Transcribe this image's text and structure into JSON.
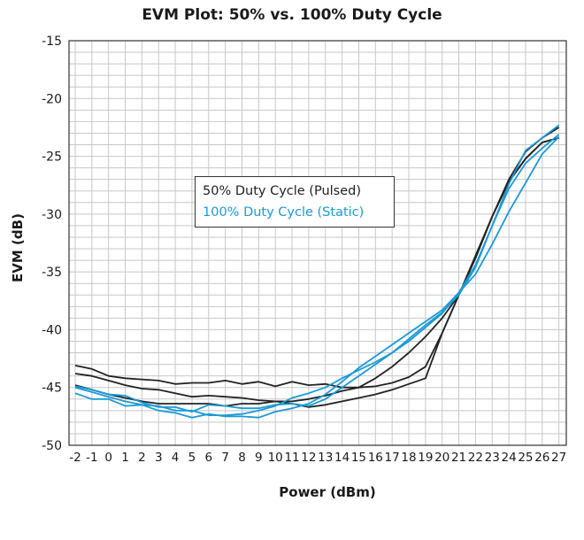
{
  "chart_data": {
    "type": "line",
    "title": "EVM Plot: 50% vs. 100% Duty Cycle",
    "xlabel": "Power (dBm)",
    "ylabel": "EVM  (dB)",
    "x": [
      -2,
      -1,
      0,
      1,
      2,
      3,
      4,
      5,
      6,
      7,
      8,
      9,
      10,
      11,
      12,
      13,
      14,
      15,
      16,
      17,
      18,
      19,
      20,
      21,
      22,
      23,
      24,
      25,
      26,
      27
    ],
    "x_tick_labels": [
      "-2",
      "-1",
      "0",
      "1",
      "2",
      "3",
      "4",
      "5",
      "6",
      "7",
      "8",
      "9",
      "10",
      "11",
      "12",
      "13",
      "14",
      "15",
      "16",
      "17",
      "18",
      "19",
      "20",
      "21",
      "22",
      "23",
      "24",
      "25",
      "26",
      "27"
    ],
    "y_ticks": [
      -15,
      -20,
      -25,
      -30,
      -35,
      -40,
      -45,
      -50
    ],
    "y_tick_labels": [
      "-15",
      "-20",
      "-25",
      "-30",
      "-35",
      "-40",
      "-45",
      "-50"
    ],
    "xlim": [
      -2,
      27
    ],
    "ylim": [
      -50,
      -15
    ],
    "grid": true,
    "legend_position": "center-left",
    "series": [
      {
        "name": "50% Duty Cycle (Pulsed)",
        "color": "#222222",
        "y": [
          -43.1,
          -43.4,
          -44.0,
          -44.2,
          -44.3,
          -44.4,
          -44.7,
          -44.6,
          -44.6,
          -44.4,
          -44.7,
          -44.5,
          -44.9,
          -44.5,
          -44.8,
          -44.7,
          -45.0,
          -45.0,
          -44.9,
          -44.6,
          -44.1,
          -43.2,
          -40.3,
          -37.0,
          -33.8,
          -30.2,
          -27.2,
          -25.2,
          -23.8,
          -23.4
        ]
      },
      {
        "name": "50% Duty Cycle (Pulsed)",
        "color": "#222222",
        "y": [
          -44.8,
          -45.2,
          -45.6,
          -45.9,
          -46.2,
          -46.4,
          -46.4,
          -46.4,
          -46.4,
          -46.6,
          -46.4,
          -46.4,
          -46.2,
          -46.2,
          -46.0,
          -45.7,
          -45.3,
          -45.0,
          -44.2,
          -43.2,
          -42.0,
          -40.6,
          -39.0,
          -37.0,
          -33.8,
          -30.2,
          -27.0,
          -24.6,
          -23.4,
          -22.5
        ]
      },
      {
        "name": "50% Duty Cycle (Pulsed)",
        "color": "#222222",
        "y": [
          -43.8,
          -44.0,
          -44.4,
          -44.8,
          -45.1,
          -45.2,
          -45.5,
          -45.8,
          -45.7,
          -45.8,
          -45.9,
          -46.1,
          -46.2,
          -46.4,
          -46.7,
          -46.5,
          -46.2,
          -45.9,
          -45.6,
          -45.2,
          -44.7,
          -44.2,
          -40.3,
          -37.0,
          -33.6,
          -30.2,
          -27.2,
          -25.2,
          -23.8,
          -23.4
        ]
      },
      {
        "name": "100% Duty Cycle (Static)",
        "color": "#1a9ad6",
        "y": [
          -44.9,
          -45.2,
          -45.6,
          -45.7,
          -46.3,
          -46.7,
          -46.7,
          -47.1,
          -46.5,
          -46.6,
          -46.8,
          -46.8,
          -46.5,
          -46.4,
          -46.6,
          -46.0,
          -45.0,
          -44.0,
          -43.0,
          -42.0,
          -41.0,
          -39.8,
          -38.6,
          -36.8,
          -34.4,
          -31.0,
          -27.4,
          -24.5,
          -23.4,
          -22.3
        ]
      },
      {
        "name": "100% Duty Cycle (Static)",
        "color": "#1a9ad6",
        "y": [
          -45.5,
          -46.0,
          -46.0,
          -46.6,
          -46.5,
          -47.0,
          -47.2,
          -47.6,
          -47.3,
          -47.5,
          -47.5,
          -47.6,
          -47.1,
          -46.8,
          -46.4,
          -45.6,
          -44.5,
          -43.3,
          -42.3,
          -41.3,
          -40.3,
          -39.3,
          -38.3,
          -36.8,
          -35.2,
          -32.6,
          -29.8,
          -27.3,
          -24.8,
          -23.3
        ]
      },
      {
        "name": "100% Duty Cycle (Static)",
        "color": "#1a9ad6",
        "y": [
          -45.0,
          -45.4,
          -45.8,
          -46.2,
          -46.5,
          -46.6,
          -47.0,
          -47.0,
          -47.4,
          -47.4,
          -47.3,
          -47.0,
          -46.6,
          -45.9,
          -45.5,
          -45.0,
          -44.2,
          -43.5,
          -42.8,
          -42.0,
          -40.8,
          -39.6,
          -38.5,
          -37.0,
          -34.6,
          -31.0,
          -27.8,
          -25.6,
          -24.3,
          -23.1
        ]
      }
    ]
  },
  "legend": [
    {
      "label": "50% Duty Cycle (Pulsed)",
      "color": "#222222"
    },
    {
      "label": "100% Duty Cycle (Static)",
      "color": "#1a9ad6"
    }
  ]
}
